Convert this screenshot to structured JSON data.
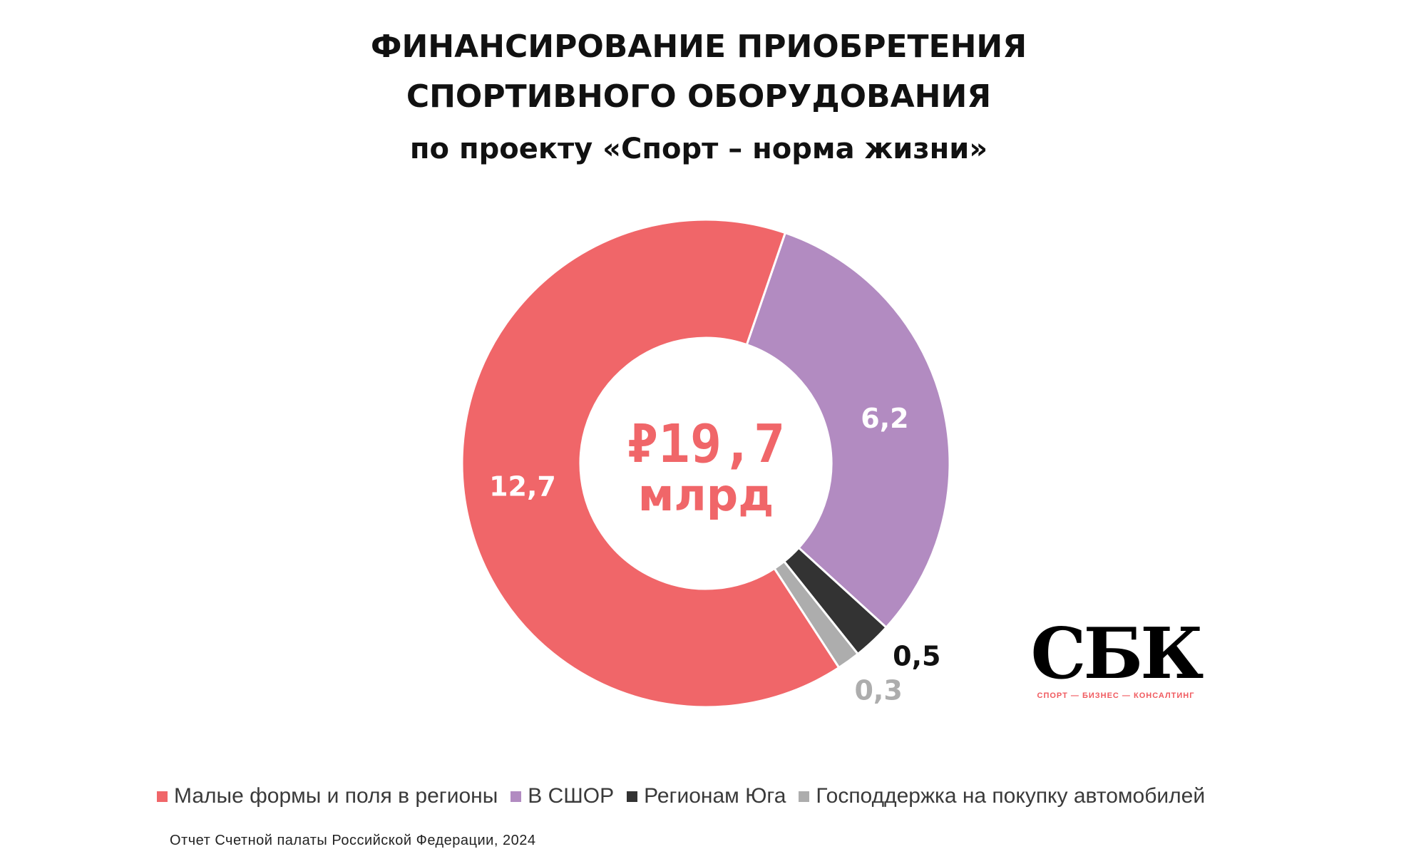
{
  "title_line1": "ФИНАНСИРОВАНИЕ ПРИОБРЕТЕНИЯ",
  "title_line2": "СПОРТИВНОГО ОБОРУДОВАНИЯ",
  "subtitle": "по проекту «Спорт – норма жизни»",
  "center_value": "₽19,7",
  "center_unit": "млрд",
  "logo": {
    "mark": "СБК",
    "subtitle": "СПОРТ — БИЗНЕС — КОНСАЛТИНГ"
  },
  "source": "Отчет Счетной палаты Российской Федерации, 2024",
  "colors": {
    "red": "#f06669",
    "purple": "#b28bc1",
    "dark": "#333333",
    "gray": "#adadad",
    "center_text": "#f06669"
  },
  "chart_data": {
    "type": "pie",
    "donut": true,
    "total": 19.7,
    "unit": "₽ млрд",
    "legend_position": "bottom",
    "slices": [
      {
        "name": "Малые формы и поля в регионы",
        "value": 12.7,
        "label": "12,7",
        "color": "#f06669",
        "label_color": "#ffffff",
        "label_place": "inside"
      },
      {
        "name": "В СШОР",
        "value": 6.2,
        "label": "6,2",
        "color": "#b28bc1",
        "label_color": "#ffffff",
        "label_place": "inside"
      },
      {
        "name": "Регионам Юга",
        "value": 0.5,
        "label": "0,5",
        "color": "#333333",
        "label_color": "#111111",
        "label_place": "outside"
      },
      {
        "name": "Господдержка на покупку автомобилей",
        "value": 0.3,
        "label": "0,3",
        "color": "#adadad",
        "label_color": "#adadad",
        "label_place": "outside"
      }
    ]
  }
}
